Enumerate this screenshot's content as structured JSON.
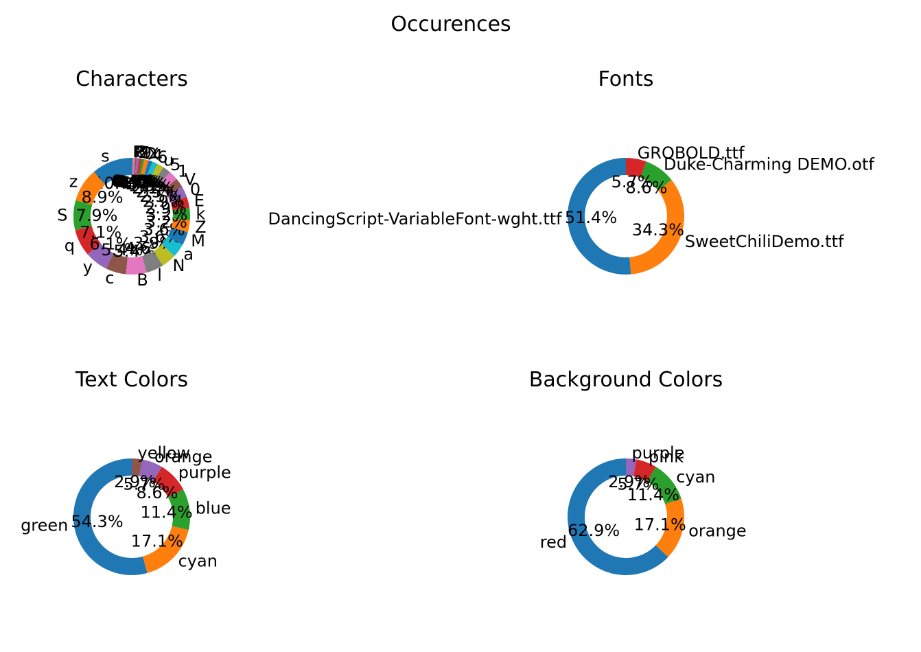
{
  "title": "Occurences",
  "chart_data": [
    {
      "type": "pie",
      "title": "Characters",
      "labels": [
        "s",
        "z",
        "S",
        "q",
        "y",
        "c",
        "B",
        "l",
        "N",
        "a",
        "M",
        "Z",
        "k",
        "E",
        "0",
        "V",
        "1",
        "5",
        "u",
        "6",
        "4",
        "X",
        "D",
        "9",
        "2",
        "8",
        "P",
        "R"
      ],
      "values": [
        10.7,
        8.9,
        7.9,
        7.1,
        6.1,
        5.4,
        5.4,
        4.6,
        3.9,
        3.6,
        3.6,
        3.2,
        3.2,
        2.9,
        2.9,
        2.5,
        2.5,
        2.1,
        1.8,
        1.4,
        1.1,
        1.1,
        0.7,
        0.7,
        0.7,
        0.4,
        0.4,
        0.4
      ],
      "pct_labels": [
        "10.7%",
        "8.9%",
        "7.9%",
        "7.1%",
        "6.1%",
        "5.4%",
        "5.4%",
        "4.6%",
        "3.9%",
        "3.6%",
        "3.6%",
        "3.2%",
        "3.2%",
        "2.9%",
        "2.9%",
        "2.5%",
        "2.5%",
        "2.1%",
        "1.8%",
        "1.4%",
        "1.1%",
        "1.1%",
        "0.7%",
        "0.7%",
        "0.7%",
        "0.4%",
        "0.4%",
        "0.4%"
      ],
      "donut": true
    },
    {
      "type": "pie",
      "title": "Fonts",
      "labels": [
        "DancingScript-VariableFont-wght.ttf",
        "SweetChiliDemo.ttf",
        "Duke-Charming DEMO.otf",
        "GROBOLD.ttf"
      ],
      "values": [
        51.4,
        34.3,
        8.6,
        5.7
      ],
      "pct_labels": [
        "51.4%",
        "34.3%",
        "8.6%",
        "5.7%"
      ],
      "donut": true
    },
    {
      "type": "pie",
      "title": "Text Colors",
      "labels": [
        "green",
        "cyan",
        "blue",
        "purple",
        "orange",
        "yellow"
      ],
      "values": [
        54.3,
        17.1,
        11.4,
        8.6,
        5.7,
        2.9
      ],
      "pct_labels": [
        "54.3%",
        "17.1%",
        "11.4%",
        "8.6%",
        "5.7%",
        "2.9%"
      ],
      "donut": true
    },
    {
      "type": "pie",
      "title": "Background Colors",
      "labels": [
        "red",
        "orange",
        "cyan",
        "pink",
        "purple"
      ],
      "values": [
        62.9,
        17.1,
        11.4,
        5.7,
        2.9
      ],
      "pct_labels": [
        "62.9%",
        "17.1%",
        "11.4%",
        "5.7%",
        "2.9%"
      ],
      "donut": true
    }
  ],
  "palette": [
    "#1f77b4",
    "#ff7f0e",
    "#2ca02c",
    "#d62728",
    "#9467bd",
    "#8c564b",
    "#e377c2",
    "#7f7f7f",
    "#bcbd22",
    "#17becf"
  ]
}
